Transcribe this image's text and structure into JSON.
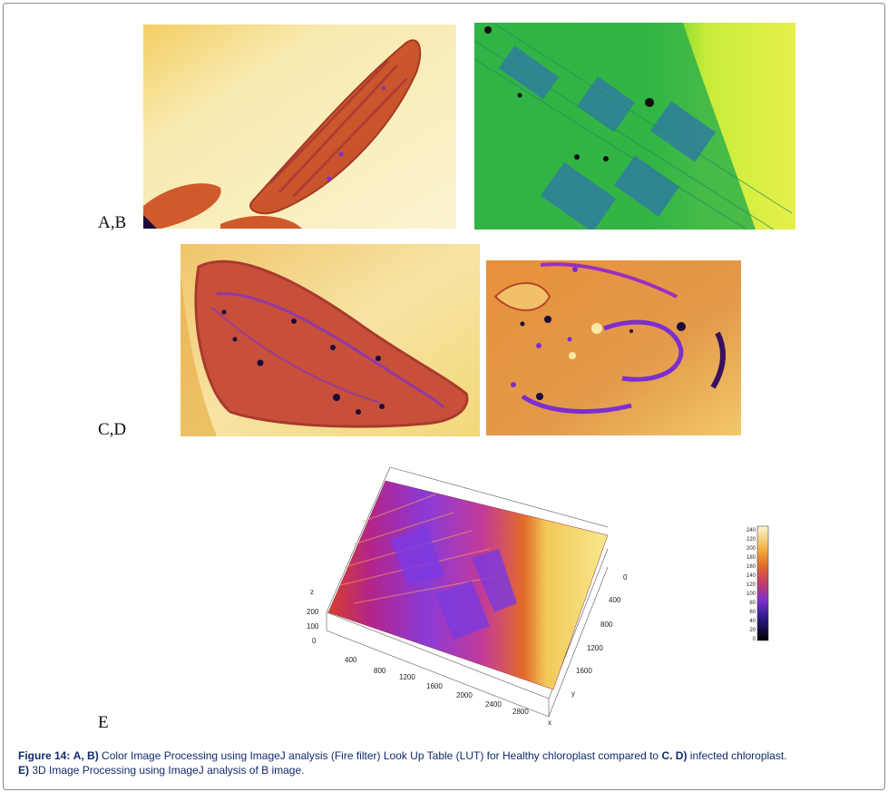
{
  "labels": {
    "ab": "A,B",
    "cd": "C,D",
    "e": "E"
  },
  "caption": {
    "lead": "Figure 14:",
    "line1_a": "A, B)",
    "line1_b": "Color Image Processing using ImageJ analysis (Fire filter) Look Up Table (LUT) for Healthy chloroplast compared to",
    "line1_c": "C. D)",
    "line1_d": "infected chloroplast.",
    "line2_a": "E)",
    "line2_b": "3D Image Processing using ImageJ analysis of B image."
  },
  "surface_plot": {
    "z_label": "z",
    "x_label": "x",
    "y_label": "y",
    "z_ticks": [
      "0",
      "100",
      "200"
    ],
    "x_ticks": [
      "400",
      "800",
      "1200",
      "1600",
      "2000",
      "2400",
      "2800"
    ],
    "y_ticks": [
      "0",
      "400",
      "800",
      "1200",
      "1600"
    ],
    "colorbar_ticks": [
      "0",
      "20",
      "40",
      "60",
      "80",
      "100",
      "120",
      "140",
      "160",
      "180",
      "200",
      "220",
      "240"
    ]
  },
  "colors": {
    "fire_dark": "#1a0a3a",
    "fire_purple": "#7b2fd0",
    "fire_red": "#c8352a",
    "fire_orange": "#e37a1f",
    "fire_yellow": "#f7e58a",
    "green_lut": "#3fcf1f",
    "caption_text": "#0f2a6e"
  }
}
